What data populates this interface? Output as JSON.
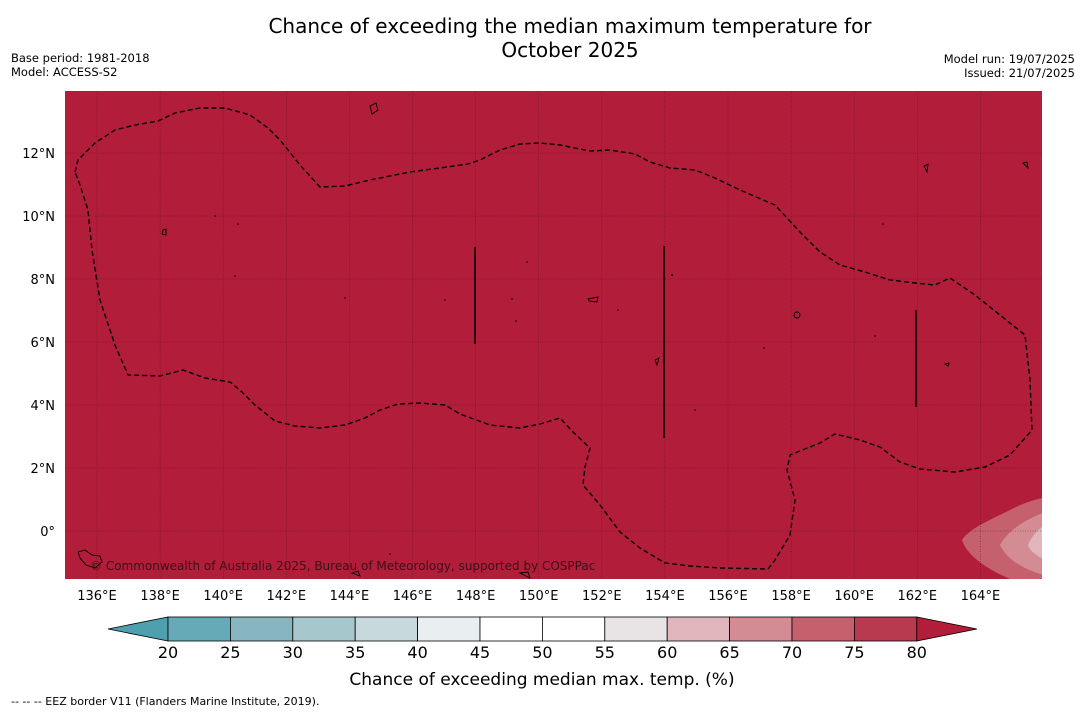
{
  "header": {
    "title_line1": "Chance of exceeding the median maximum temperature for",
    "title_line2": "October 2025",
    "base_period": "Base period: 1981-2018",
    "model": "Model: ACCESS-S2",
    "model_run": "Model run: 19/07/2025",
    "issued": "Issued: 21/07/2025"
  },
  "map": {
    "background_color": "#b21d3a",
    "lon_labels": [
      "136°E",
      "138°E",
      "140°E",
      "142°E",
      "144°E",
      "146°E",
      "148°E",
      "150°E",
      "152°E",
      "154°E",
      "156°E",
      "158°E",
      "160°E",
      "162°E",
      "164°E"
    ],
    "lat_labels": [
      "12°N",
      "10°N",
      "8°N",
      "6°N",
      "4°N",
      "2°N",
      "0°"
    ],
    "credit": "© Commonwealth of Australia 2025, Bureau of Meteorology, supported by COSPPac"
  },
  "colorbar": {
    "ticks": [
      "20",
      "25",
      "30",
      "35",
      "40",
      "45",
      "50",
      "55",
      "60",
      "65",
      "70",
      "75",
      "80"
    ],
    "colors": [
      "#66aab8",
      "#86b5c0",
      "#a6c7cc",
      "#c7d9dd",
      "#e9eff1",
      "#ffffff",
      "#ffffff",
      "#e8e4e5",
      "#e0b6bc",
      "#d38c93",
      "#c5606d",
      "#b83a4e",
      "#b21d3a"
    ],
    "under_color": "#4fa0ae",
    "title": "Chance of exceeding median max. temp. (%)"
  },
  "footnote": "--  --  -- EEZ border V11 (Flanders Marine Institute, 2019)."
}
